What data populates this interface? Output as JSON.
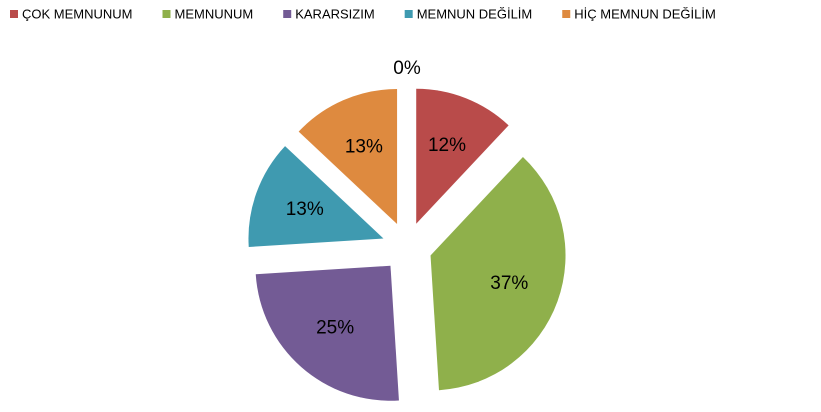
{
  "chart_data": {
    "type": "pie",
    "categories": [
      "ÇOK MEMNUNUM",
      "MEMNUNUM",
      "KARARSIZIM",
      "MEMNUN DEĞİLİM",
      "HİÇ MEMNUN DEĞİLİM",
      null
    ],
    "values": [
      12,
      37,
      25,
      13,
      13,
      0
    ],
    "value_labels": [
      "12%",
      "37%",
      "25%",
      "13%",
      "13%",
      "0%"
    ],
    "colors": [
      "#b94b4a",
      "#8fb04b",
      "#735b95",
      "#3f9ab0",
      "#de8a3f",
      "#4f81bd"
    ],
    "legend": "top"
  }
}
